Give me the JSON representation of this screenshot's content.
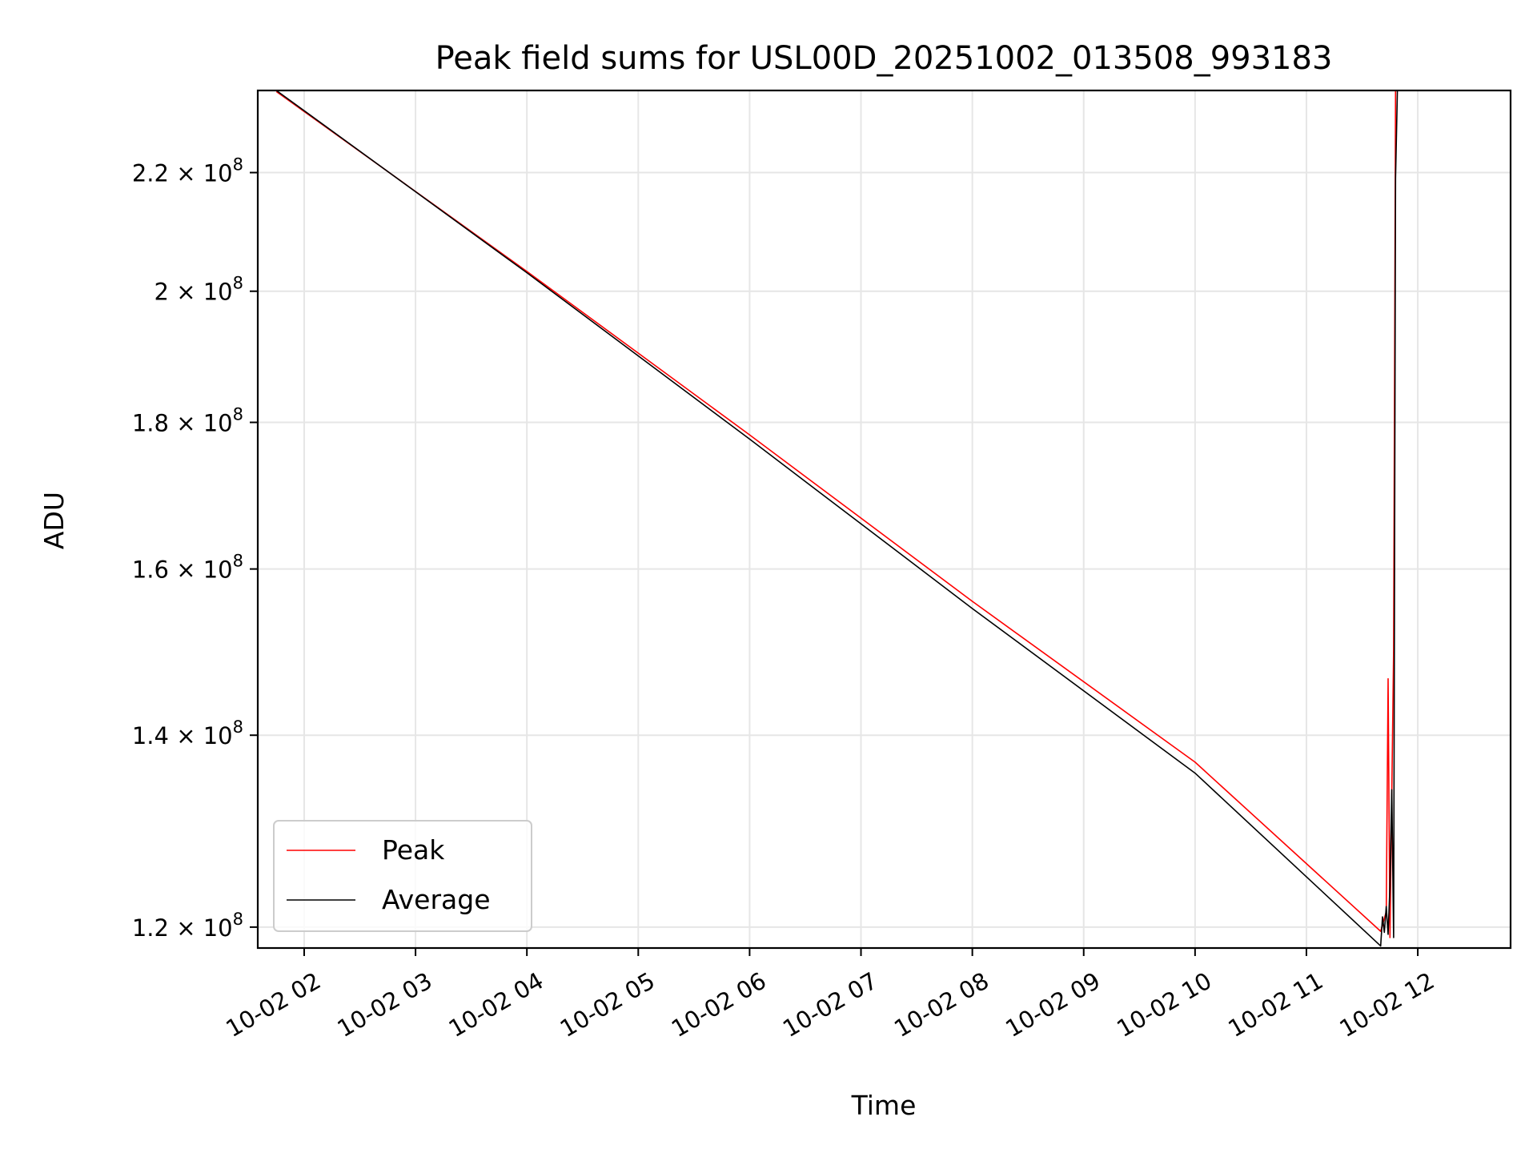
{
  "chart_data": {
    "type": "line",
    "title": "Peak field sums for USL00D_20251002_013508_993183",
    "xlabel": "Time",
    "ylabel": "ADU",
    "y_scale": "log",
    "grid": true,
    "legend_position": "lower-left",
    "xlim": [
      "2025-10-02 01:35",
      "2025-10-02 12:50"
    ],
    "ylim": [
      118000000,
      235000000
    ],
    "x_ticks": [
      "10-02 02",
      "10-02 03",
      "10-02 04",
      "10-02 05",
      "10-02 06",
      "10-02 07",
      "10-02 08",
      "10-02 09",
      "10-02 10",
      "10-02 11",
      "10-02 12"
    ],
    "x_tick_values": [
      "2025-10-02 02:00",
      "2025-10-02 03:00",
      "2025-10-02 04:00",
      "2025-10-02 05:00",
      "2025-10-02 06:00",
      "2025-10-02 07:00",
      "2025-10-02 08:00",
      "2025-10-02 09:00",
      "2025-10-02 10:00",
      "2025-10-02 11:00",
      "2025-10-02 12:00"
    ],
    "y_ticks": [
      {
        "value": 120000000,
        "mantissa": "1.2",
        "exp": "8"
      },
      {
        "value": 140000000,
        "mantissa": "1.4",
        "exp": "8"
      },
      {
        "value": 160000000,
        "mantissa": "1.6",
        "exp": "8"
      },
      {
        "value": 180000000,
        "mantissa": "1.8",
        "exp": "8"
      },
      {
        "value": 200000000,
        "mantissa": "2",
        "exp": "8"
      },
      {
        "value": 220000000,
        "mantissa": "2.2",
        "exp": "8"
      }
    ],
    "series": [
      {
        "name": "Peak",
        "color": "#ff0000",
        "points": [
          [
            "2025-10-02 01:45",
            234800000
          ],
          [
            "2025-10-02 04:00",
            203200000
          ],
          [
            "2025-10-02 06:00",
            178200000
          ],
          [
            "2025-10-02 08:00",
            155900000
          ],
          [
            "2025-10-02 10:00",
            137000000
          ],
          [
            "2025-10-02 11:40",
            119600000
          ],
          [
            "2025-10-02 11:43",
            121500000
          ],
          [
            "2025-10-02 11:44",
            146500000
          ],
          [
            "2025-10-02 11:45",
            119000000
          ],
          [
            "2025-10-02 11:47",
            150000000
          ],
          [
            "2025-10-02 11:48",
            235000000
          ],
          [
            "2025-10-02 11:50",
            235000000
          ]
        ]
      },
      {
        "name": "Average",
        "color": "#000000",
        "points": [
          [
            "2025-10-02 01:45",
            235000000
          ],
          [
            "2025-10-02 04:00",
            203000000
          ],
          [
            "2025-10-02 06:00",
            177600000
          ],
          [
            "2025-10-02 08:00",
            155000000
          ],
          [
            "2025-10-02 10:00",
            135800000
          ],
          [
            "2025-10-02 11:40",
            118200000
          ],
          [
            "2025-10-02 11:41",
            121000000
          ],
          [
            "2025-10-02 11:42",
            119500000
          ],
          [
            "2025-10-02 11:43",
            122000000
          ],
          [
            "2025-10-02 11:44",
            119300000
          ],
          [
            "2025-10-02 11:45",
            124000000
          ],
          [
            "2025-10-02 11:46",
            134000000
          ],
          [
            "2025-10-02 11:47",
            119000000
          ],
          [
            "2025-10-02 11:48",
            219000000
          ],
          [
            "2025-10-02 11:49",
            235000000
          ],
          [
            "2025-10-02 11:50",
            235000000
          ]
        ]
      }
    ]
  }
}
